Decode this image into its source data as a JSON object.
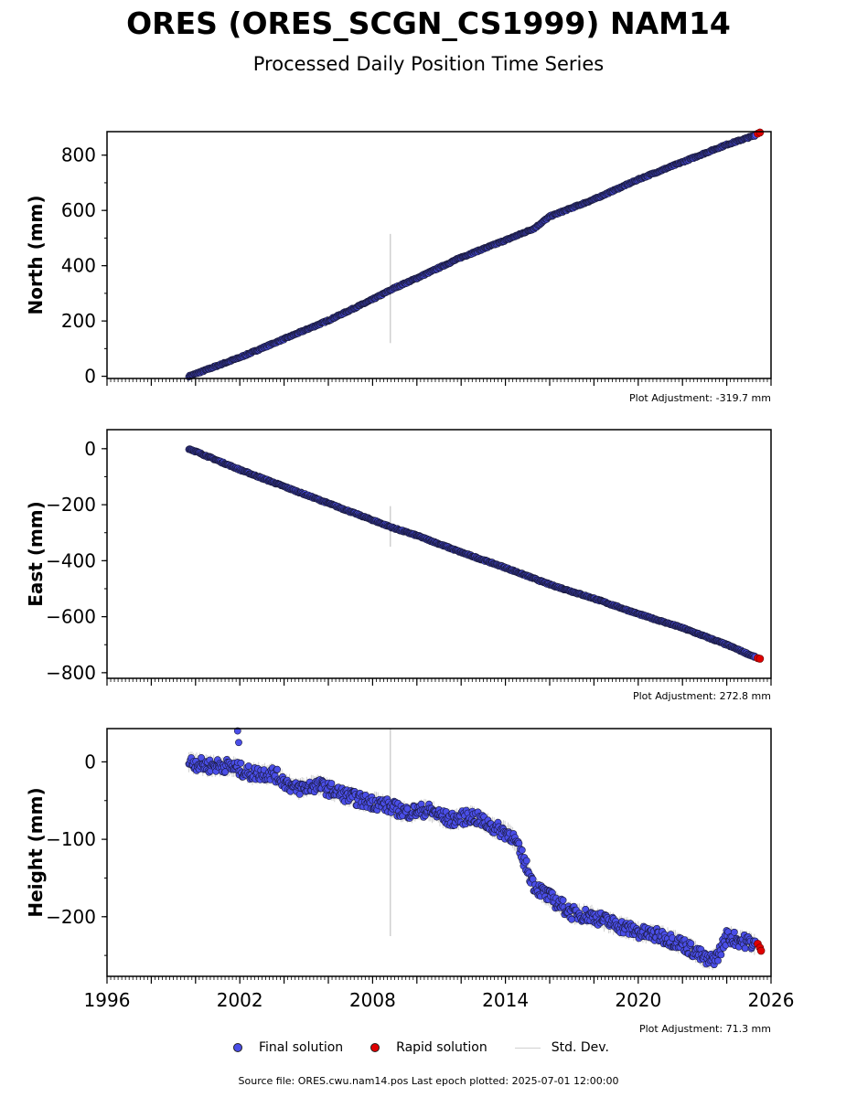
{
  "title": "ORES (ORES_SCGN_CS1999) NAM14",
  "subtitle": "Processed Daily Position Time Series",
  "legend": {
    "final": "Final solution",
    "rapid": "Rapid solution",
    "std": "Std. Dev."
  },
  "colors": {
    "final": "#4a4ee8",
    "rapid": "#e00000",
    "std": "#d0d0d0",
    "edge": "#1a1a3a"
  },
  "source_text": "Source file: ORES.cwu.nam14.pos  Last epoch plotted: 2025-07-01 12:00:00",
  "chart_data": [
    {
      "type": "scatter",
      "title": "",
      "ylabel": "North (mm)",
      "xlim": [
        1996,
        2026
      ],
      "ylim": [
        -8,
        885
      ],
      "yticks": [
        0,
        200,
        400,
        600,
        800
      ],
      "adjustment": "Plot Adjustment: -319.7 mm",
      "series": [
        {
          "name": "Final solution",
          "x": [
            1999.7,
            2002,
            2004,
            2006,
            2008,
            2009,
            2010,
            2012,
            2014,
            2015.3,
            2016,
            2018,
            2020,
            2022,
            2024,
            2025.3
          ],
          "y": [
            0,
            68,
            135,
            202,
            278,
            320,
            355,
            430,
            492,
            535,
            578,
            640,
            712,
            775,
            838,
            872
          ]
        },
        {
          "name": "Rapid solution",
          "x": [
            2025.4,
            2025.5
          ],
          "y": [
            878,
            882
          ]
        }
      ],
      "std_spike": {
        "x": 2008.8,
        "ymin": 120,
        "ymax": 515
      }
    },
    {
      "type": "scatter",
      "title": "",
      "ylabel": "East (mm)",
      "xlim": [
        1996,
        2026
      ],
      "ylim": [
        -820,
        68
      ],
      "yticks": [
        0,
        -200,
        -400,
        -600,
        -800
      ],
      "adjustment": "Plot Adjustment: 272.8 mm",
      "series": [
        {
          "name": "Final solution",
          "x": [
            1999.7,
            2002,
            2004,
            2006,
            2008,
            2009,
            2010,
            2012,
            2014,
            2016,
            2018,
            2020,
            2022,
            2024,
            2025.3
          ],
          "y": [
            0,
            -75,
            -135,
            -195,
            -255,
            -285,
            -310,
            -370,
            -425,
            -485,
            -535,
            -590,
            -640,
            -700,
            -745
          ]
        },
        {
          "name": "Rapid solution",
          "x": [
            2025.4,
            2025.5
          ],
          "y": [
            -748,
            -750
          ]
        }
      ],
      "std_spike": {
        "x": 2008.8,
        "ymin": -350,
        "ymax": -205
      }
    },
    {
      "type": "scatter",
      "title": "",
      "ylabel": "Height (mm)",
      "xlim": [
        1996,
        2026
      ],
      "ylim": [
        -277,
        43
      ],
      "yticks": [
        0,
        -100,
        -200
      ],
      "xticks": [
        1996,
        2002,
        2008,
        2014,
        2020,
        2026
      ],
      "adjustment": "Plot Adjustment: 71.3 mm",
      "series": [
        {
          "name": "Final solution",
          "x": [
            1999.7,
            2000.5,
            2001.5,
            2002.5,
            2003.5,
            2004.5,
            2005.5,
            2006.5,
            2007.5,
            2008.5,
            2009.5,
            2010.5,
            2011.5,
            2012.5,
            2013.5,
            2014.3,
            2014.8,
            2015.3,
            2016,
            2017,
            2018,
            2019,
            2020,
            2021,
            2022,
            2022.8,
            2023.2,
            2023.6,
            2024,
            2024.5,
            2025.3
          ],
          "y": [
            0,
            -5,
            -5,
            -15,
            -15,
            -35,
            -30,
            -40,
            -50,
            -55,
            -65,
            -62,
            -75,
            -70,
            -85,
            -95,
            -125,
            -160,
            -175,
            -195,
            -200,
            -210,
            -220,
            -225,
            -235,
            -250,
            -258,
            -250,
            -225,
            -230,
            -235
          ]
        },
        {
          "name": "Rapid solution",
          "x": [
            2025.4,
            2025.5,
            2025.55
          ],
          "y": [
            -235,
            -240,
            -244
          ]
        }
      ],
      "outliers": {
        "x": [
          2001.9,
          2001.95
        ],
        "y": [
          40,
          25
        ]
      },
      "std_spike": {
        "x": 2008.8,
        "ymin": -225,
        "ymax": 43
      }
    }
  ]
}
